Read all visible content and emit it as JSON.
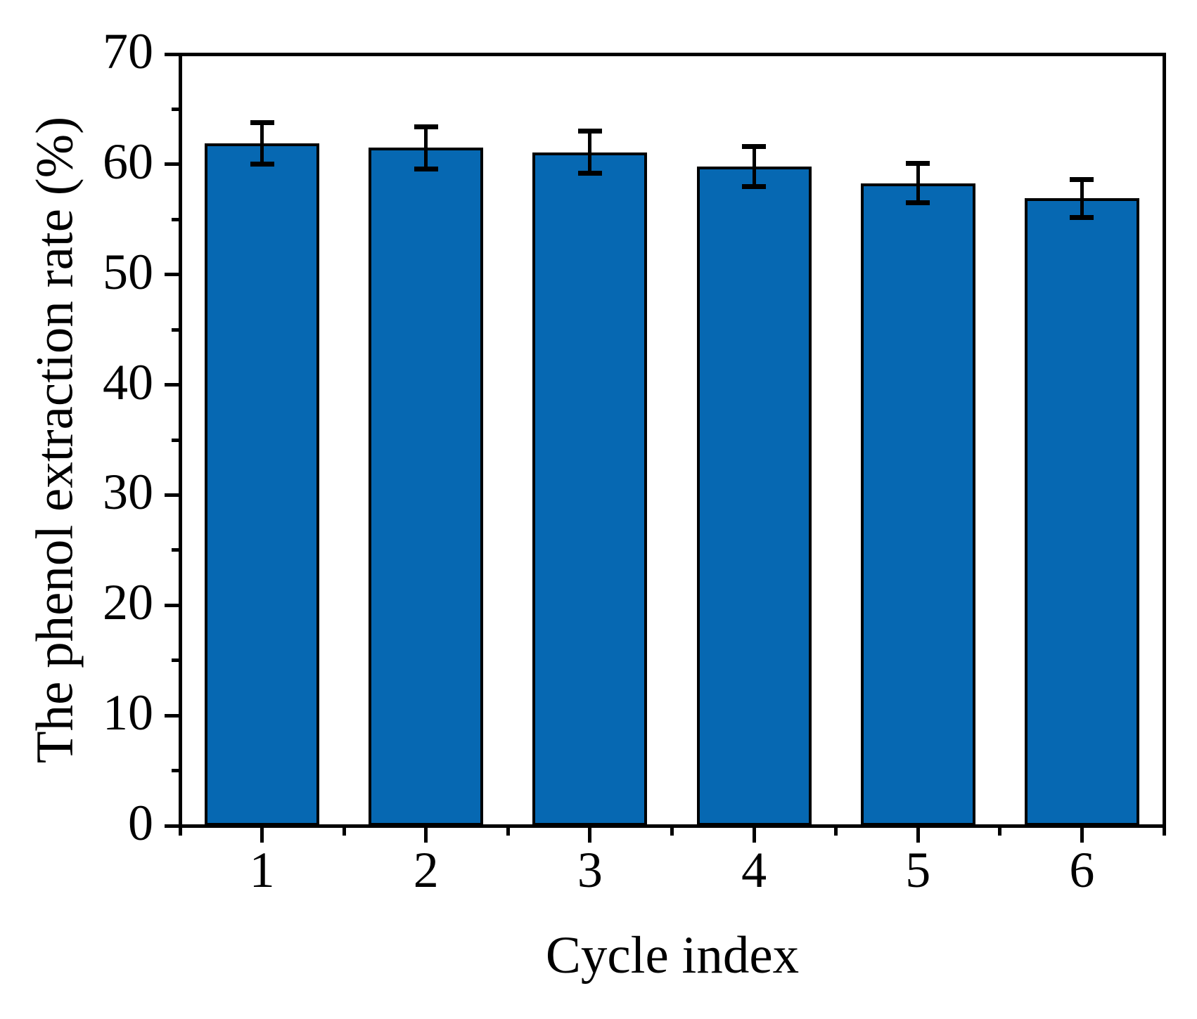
{
  "figure": {
    "background": "#ffffff"
  },
  "chart_data": {
    "type": "bar",
    "title": "",
    "xlabel": "Cycle index",
    "ylabel": "The phenol extraction rate (%)",
    "categories": [
      "1",
      "2",
      "3",
      "4",
      "5",
      "6"
    ],
    "values": [
      61.9,
      61.5,
      61.1,
      59.8,
      58.3,
      56.9
    ],
    "errors": [
      1.9,
      1.9,
      1.9,
      1.8,
      1.8,
      1.7
    ],
    "ylim": [
      0,
      70
    ],
    "y_major_ticks": [
      0,
      10,
      20,
      30,
      40,
      50,
      60,
      70
    ],
    "y_minor_ticks": [
      5,
      15,
      25,
      35,
      45,
      55,
      65
    ],
    "grid": false,
    "legend": null,
    "bar_color": "#0668b2",
    "bar_edge_color": "#000000",
    "error_color": "#000000",
    "axis_color": "#000000",
    "tick_direction": "out"
  }
}
